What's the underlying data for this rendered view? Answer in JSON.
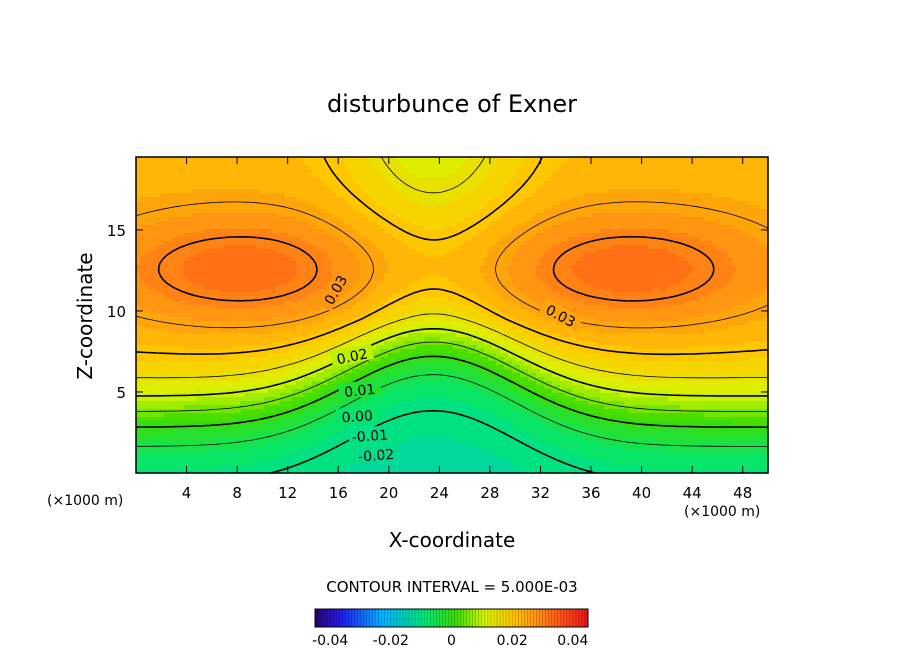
{
  "chart_data": {
    "type": "heatmap",
    "title": "disturbunce of Exner",
    "xlabel": "X-coordinate",
    "ylabel": "Z-coordinate",
    "x_unit": "(×1000 m)",
    "y_unit": "(×1000 m)",
    "xlim": [
      0,
      50
    ],
    "ylim": [
      0,
      19.5
    ],
    "x_ticks": [
      4,
      8,
      12,
      16,
      20,
      24,
      28,
      32,
      36,
      40,
      44,
      48
    ],
    "y_ticks": [
      5,
      10,
      15
    ],
    "contour_interval_text": "CONTOUR INTERVAL = 5.000E-03",
    "contour_interval": 0.005,
    "contour_labels": [
      {
        "text": "0.03",
        "x": 15.8,
        "z": 11.3,
        "rotate": -60
      },
      {
        "text": "0.03",
        "x": 33.6,
        "z": 9.7,
        "rotate": 28
      },
      {
        "text": "0.02",
        "x": 17.1,
        "z": 7.2,
        "rotate": -12
      },
      {
        "text": "0.01",
        "x": 17.7,
        "z": 5.1,
        "rotate": -6
      },
      {
        "text": "0.00",
        "x": 17.5,
        "z": 3.5,
        "rotate": -4
      },
      {
        "text": "-0.01",
        "x": 18.5,
        "z": 2.3,
        "rotate": -4
      },
      {
        "text": "-0.02",
        "x": 19.0,
        "z": 1.1,
        "rotate": -4
      }
    ],
    "color_range": [
      -0.045,
      0.045
    ],
    "colorbar_ticks": [
      "-0.04",
      "-0.02",
      "0",
      "0.02",
      "0.04"
    ],
    "colorbar_tick_values": [
      -0.04,
      -0.02,
      0,
      0.02,
      0.04
    ],
    "grid": false,
    "legend": "colorbar below plot"
  }
}
